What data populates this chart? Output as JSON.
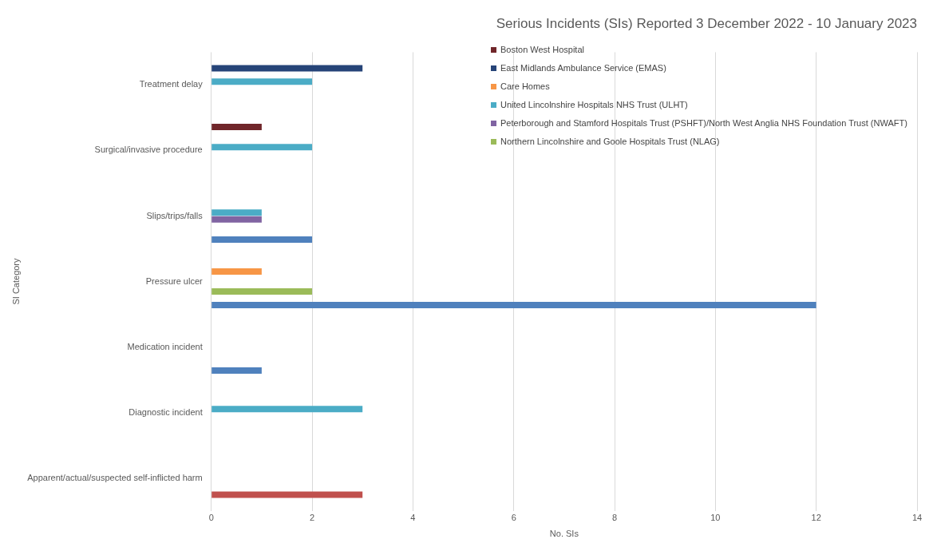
{
  "chart_data": {
    "type": "bar",
    "orientation": "horizontal",
    "title": "Serious Incidents (SIs) Reported 3 December 2022 - 10 January 2023",
    "xlabel": "No. SIs",
    "ylabel": "SI Category",
    "categories": [
      "Treatment delay",
      "Surgical/invasive procedure",
      "Slips/trips/falls",
      "Pressure ulcer",
      "Medication incident",
      "Diagnostic incident",
      "Apparent/actual/suspected self-inflicted harm"
    ],
    "series": [
      {
        "name": "Boston West Hospital",
        "color": "#70262a",
        "values": [
          null,
          1,
          null,
          null,
          null,
          null,
          null
        ]
      },
      {
        "name": "East Midlands Ambulance Service (EMAS)",
        "color": "#264478",
        "values": [
          3,
          null,
          null,
          null,
          null,
          null,
          null
        ]
      },
      {
        "name": "Care Homes",
        "color": "#f79646",
        "values": [
          null,
          null,
          null,
          1,
          null,
          null,
          null
        ]
      },
      {
        "name": "United Lincolnshire Hospitals NHS Trust (ULHT)",
        "color": "#4bacc6",
        "values": [
          2,
          2,
          1,
          null,
          null,
          3,
          null
        ]
      },
      {
        "name": "Peterborough and Stamford Hospitals Trust (PSHFT)/North West Anglia NHS Foundation Trust (NWAFT)",
        "color": "#8064a2",
        "values": [
          null,
          null,
          1,
          null,
          null,
          null,
          null
        ]
      },
      {
        "name": "Northern Lincolnshire and Goole Hospitals Trust (NLAG)",
        "color": "#9bbb59",
        "values": [
          null,
          null,
          null,
          2,
          null,
          null,
          null
        ]
      },
      {
        "color": "#c0504d",
        "values": [
          null,
          null,
          null,
          null,
          null,
          null,
          3
        ]
      },
      {
        "color": "#4f81bd",
        "values": [
          null,
          null,
          2,
          12,
          1,
          null,
          null
        ]
      }
    ],
    "xlim": [
      0,
      14
    ],
    "xticks": [
      0,
      2,
      4,
      6,
      8,
      10,
      12,
      14
    ],
    "grid": "x",
    "legend": "top right"
  }
}
